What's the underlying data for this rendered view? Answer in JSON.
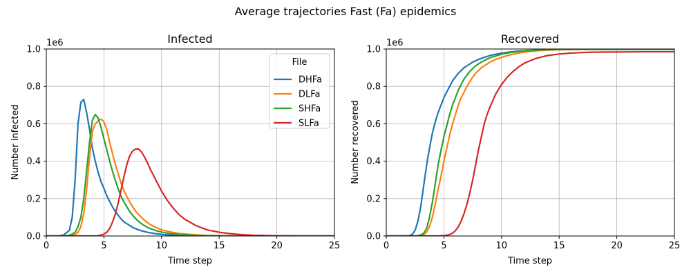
{
  "figure_title": "Average trajectories Fast (Fa) epidemics",
  "chart_data": [
    {
      "type": "line",
      "title": "Infected",
      "xlabel": "Time step",
      "ylabel": "Number infected",
      "y_offset_label": "1e6",
      "xlim": [
        0,
        25
      ],
      "ylim": [
        0,
        1.0
      ],
      "y_scale_factor": 1000000,
      "x_ticks": [
        0,
        5,
        10,
        15,
        20,
        25
      ],
      "x_tick_labels": [
        "0",
        "5",
        "10",
        "15",
        "20",
        "25"
      ],
      "y_ticks": [
        0,
        0.2,
        0.4,
        0.6,
        0.8,
        1.0
      ],
      "y_tick_labels": [
        "0.0",
        "0.2",
        "0.4",
        "0.6",
        "0.8",
        "1.0"
      ],
      "grid": true,
      "legend": {
        "title": "File",
        "placement": "top-right"
      },
      "x": [
        0,
        1,
        1.5,
        2,
        2.25,
        2.5,
        2.75,
        3,
        3.25,
        3.5,
        3.75,
        4,
        4.25,
        4.5,
        4.75,
        5,
        5.25,
        5.5,
        5.75,
        6,
        6.25,
        6.5,
        6.75,
        7,
        7.25,
        7.5,
        7.75,
        8,
        8.25,
        8.5,
        8.75,
        9,
        9.5,
        10,
        10.5,
        11,
        11.5,
        12,
        13,
        14,
        15,
        16,
        17,
        18,
        20,
        22,
        25
      ],
      "series": [
        {
          "name": "DHFa",
          "color": "#1f77b4",
          "values": [
            0,
            0,
            0.005,
            0.03,
            0.1,
            0.3,
            0.6,
            0.715,
            0.73,
            0.66,
            0.57,
            0.47,
            0.4,
            0.34,
            0.29,
            0.255,
            0.215,
            0.185,
            0.155,
            0.13,
            0.11,
            0.09,
            0.075,
            0.065,
            0.055,
            0.046,
            0.039,
            0.033,
            0.028,
            0.024,
            0.02,
            0.017,
            0.012,
            0.009,
            0.006,
            0.004,
            0.003,
            0.002,
            0.001,
            0.0005,
            0,
            0,
            0,
            0,
            0,
            0,
            0
          ]
        },
        {
          "name": "DLFa",
          "color": "#ff7f0e",
          "values": [
            0,
            0,
            0,
            0.001,
            0.003,
            0.008,
            0.02,
            0.05,
            0.12,
            0.25,
            0.42,
            0.56,
            0.6,
            0.615,
            0.625,
            0.61,
            0.57,
            0.5,
            0.44,
            0.38,
            0.33,
            0.28,
            0.24,
            0.21,
            0.18,
            0.155,
            0.132,
            0.115,
            0.1,
            0.085,
            0.073,
            0.062,
            0.046,
            0.033,
            0.025,
            0.019,
            0.014,
            0.011,
            0.006,
            0.003,
            0.002,
            0.001,
            0,
            0,
            0,
            0,
            0
          ]
        },
        {
          "name": "SHFa",
          "color": "#2ca02c",
          "values": [
            0,
            0,
            0,
            0.004,
            0.01,
            0.02,
            0.05,
            0.1,
            0.2,
            0.35,
            0.5,
            0.62,
            0.65,
            0.63,
            0.58,
            0.52,
            0.46,
            0.4,
            0.345,
            0.295,
            0.25,
            0.21,
            0.18,
            0.155,
            0.13,
            0.11,
            0.093,
            0.078,
            0.066,
            0.056,
            0.047,
            0.04,
            0.029,
            0.021,
            0.015,
            0.011,
            0.008,
            0.006,
            0.003,
            0.0015,
            0.001,
            0,
            0,
            0,
            0,
            0,
            0
          ]
        },
        {
          "name": "SLFa",
          "color": "#d62728",
          "values": [
            0,
            0,
            0,
            0,
            0,
            0,
            0,
            0,
            0,
            0,
            0,
            0,
            0,
            0.001,
            0.005,
            0.01,
            0.02,
            0.04,
            0.075,
            0.12,
            0.18,
            0.25,
            0.32,
            0.385,
            0.43,
            0.455,
            0.465,
            0.465,
            0.45,
            0.425,
            0.395,
            0.36,
            0.3,
            0.24,
            0.19,
            0.15,
            0.115,
            0.09,
            0.055,
            0.032,
            0.02,
            0.012,
            0.007,
            0.004,
            0.001,
            0,
            0
          ]
        }
      ]
    },
    {
      "type": "line",
      "title": "Recovered",
      "xlabel": "Time step",
      "ylabel": "Number recovered",
      "y_offset_label": "1e6",
      "xlim": [
        0,
        25
      ],
      "ylim": [
        0,
        1.0
      ],
      "y_scale_factor": 1000000,
      "x_ticks": [
        0,
        5,
        10,
        15,
        20,
        25
      ],
      "x_tick_labels": [
        "0",
        "5",
        "10",
        "15",
        "20",
        "25"
      ],
      "y_ticks": [
        0,
        0.2,
        0.4,
        0.6,
        0.8,
        1.0
      ],
      "y_tick_labels": [
        "0.0",
        "0.2",
        "0.4",
        "0.6",
        "0.8",
        "1.0"
      ],
      "grid": true,
      "x": [
        0,
        1,
        1.5,
        2,
        2.25,
        2.5,
        2.75,
        3,
        3.25,
        3.5,
        3.75,
        4,
        4.25,
        4.5,
        4.75,
        5,
        5.25,
        5.5,
        5.75,
        6,
        6.25,
        6.5,
        6.75,
        7,
        7.25,
        7.5,
        7.75,
        8,
        8.25,
        8.5,
        8.75,
        9,
        9.5,
        10,
        10.5,
        11,
        11.5,
        12,
        13,
        14,
        15,
        16,
        17,
        18,
        20,
        22,
        25
      ],
      "series": [
        {
          "name": "DHFa",
          "color": "#1f77b4",
          "values": [
            0,
            0,
            0,
            0.002,
            0.008,
            0.03,
            0.08,
            0.16,
            0.27,
            0.38,
            0.47,
            0.55,
            0.61,
            0.66,
            0.7,
            0.74,
            0.77,
            0.8,
            0.83,
            0.85,
            0.87,
            0.885,
            0.9,
            0.91,
            0.92,
            0.93,
            0.937,
            0.944,
            0.95,
            0.955,
            0.96,
            0.965,
            0.972,
            0.978,
            0.982,
            0.986,
            0.989,
            0.991,
            0.994,
            0.996,
            0.997,
            0.998,
            0.998,
            0.998,
            0.998,
            0.998,
            0.998
          ]
        },
        {
          "name": "DLFa",
          "color": "#ff7f0e",
          "values": [
            0,
            0,
            0,
            0,
            0,
            0,
            0,
            0.002,
            0.008,
            0.02,
            0.05,
            0.1,
            0.17,
            0.25,
            0.32,
            0.4,
            0.47,
            0.54,
            0.6,
            0.65,
            0.7,
            0.74,
            0.77,
            0.8,
            0.825,
            0.85,
            0.87,
            0.885,
            0.9,
            0.91,
            0.92,
            0.93,
            0.945,
            0.955,
            0.965,
            0.972,
            0.978,
            0.983,
            0.99,
            0.994,
            0.996,
            0.997,
            0.998,
            0.998,
            0.998,
            0.998,
            0.998
          ]
        },
        {
          "name": "SHFa",
          "color": "#2ca02c",
          "values": [
            0,
            0,
            0,
            0,
            0,
            0,
            0.002,
            0.006,
            0.015,
            0.04,
            0.1,
            0.18,
            0.28,
            0.38,
            0.46,
            0.53,
            0.59,
            0.65,
            0.7,
            0.74,
            0.78,
            0.81,
            0.84,
            0.86,
            0.88,
            0.895,
            0.91,
            0.92,
            0.93,
            0.938,
            0.946,
            0.953,
            0.963,
            0.972,
            0.978,
            0.983,
            0.987,
            0.99,
            0.994,
            0.996,
            0.997,
            0.998,
            0.998,
            0.998,
            0.998,
            0.998,
            0.998
          ]
        },
        {
          "name": "SLFa",
          "color": "#d62728",
          "values": [
            0,
            0,
            0,
            0,
            0,
            0,
            0,
            0,
            0,
            0,
            0,
            0,
            0,
            0,
            0.001,
            0.002,
            0.004,
            0.008,
            0.015,
            0.028,
            0.05,
            0.08,
            0.12,
            0.17,
            0.23,
            0.3,
            0.38,
            0.46,
            0.53,
            0.6,
            0.65,
            0.69,
            0.76,
            0.81,
            0.85,
            0.88,
            0.905,
            0.925,
            0.95,
            0.965,
            0.973,
            0.978,
            0.981,
            0.983,
            0.984,
            0.985,
            0.985
          ]
        }
      ]
    }
  ]
}
